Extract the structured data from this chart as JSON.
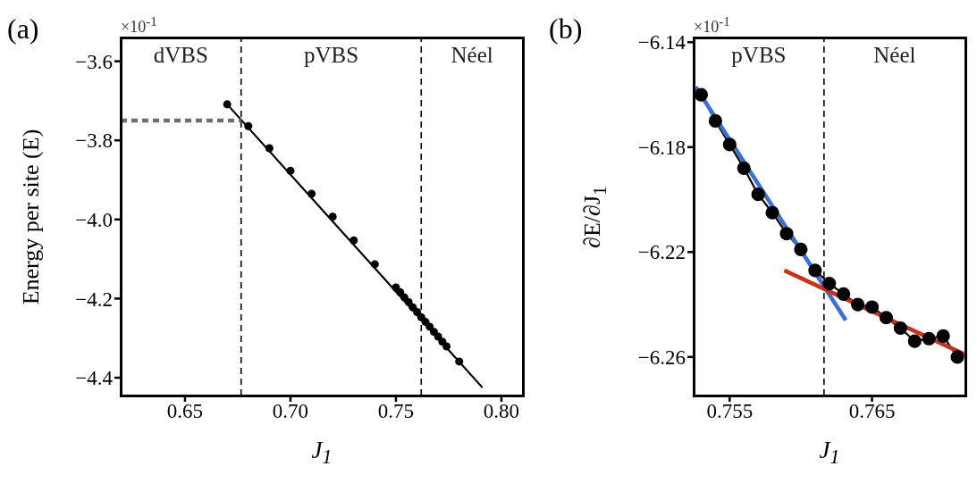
{
  "chart_data": [
    {
      "type": "line",
      "title": "(a)",
      "xlabel": "J$_{1}$",
      "ylabel": "Energy per site (E)",
      "annotations": [
        "×10$^{-1}$",
        "dVBS",
        "pVBS",
        "Néel"
      ],
      "xlim": [
        0.6195,
        0.8102
      ],
      "ylim": [
        -4.445,
        -3.54
      ],
      "xticks": [
        0.65,
        {
          "value": 0.7,
          "label": "0.70"
        },
        0.75,
        {
          "value": 0.8,
          "label": "0.80"
        }
      ],
      "yticks": [
        {
          "value": -3.6,
          "label": "−3.6"
        },
        {
          "value": -3.8,
          "label": "−3.8"
        },
        {
          "value": -4.0,
          "label": "−4.0"
        },
        {
          "value": -4.2,
          "label": "−4.2"
        },
        {
          "value": -4.4,
          "label": "−4.4"
        }
      ],
      "ref_lines": [
        {
          "axis": "x",
          "value": 0.6766,
          "color": "#000000",
          "line_style": "dashed"
        },
        {
          "axis": "x",
          "value": 0.762,
          "color": "#000000",
          "line_style": "dashed"
        }
      ],
      "series": [
        {
          "type": "line",
          "color": "#000000",
          "x": [
            0.67,
            0.791
          ],
          "values": [
            -3.709,
            -4.425
          ]
        },
        {
          "type": "scatter",
          "color": "#000000",
          "marker": "circle",
          "x": [
            0.67,
            0.68,
            0.69,
            0.7,
            0.71,
            0.72,
            0.73,
            0.74,
            0.75,
            0.752,
            0.754,
            0.756,
            0.758,
            0.76,
            0.762,
            0.764,
            0.766,
            0.768,
            0.77,
            0.772,
            0.774,
            0.78
          ],
          "values": [
            -3.709,
            -3.764,
            -3.82,
            -3.877,
            -3.935,
            -3.993,
            -4.053,
            -4.113,
            -4.172,
            -4.184,
            -4.197,
            -4.209,
            -4.222,
            -4.234,
            -4.247,
            -4.259,
            -4.271,
            -4.284,
            -4.296,
            -4.309,
            -4.321,
            -4.359
          ]
        },
        {
          "type": "line",
          "color": "#6e6e6e",
          "marker": "none",
          "line_style": "dashed",
          "x": [
            0.6195,
            0.6766
          ],
          "values": [
            -3.75,
            -3.75
          ]
        }
      ]
    },
    {
      "type": "line",
      "title": "(b)",
      "xlabel": "J$_{1}$",
      "ylabel": "∂E/∂J$_{1}$",
      "annotations": [
        "×10$^{-1}$",
        "pVBS",
        "Néel"
      ],
      "xlim": [
        0.75247,
        0.77156
      ],
      "ylim": [
        -6.2747,
        -6.1382
      ],
      "xticks": [
        0.755,
        0.765
      ],
      "yticks": [
        {
          "value": -6.14,
          "label": "−6.14"
        },
        {
          "value": -6.18,
          "label": "−6.18"
        },
        {
          "value": -6.22,
          "label": "−6.22"
        },
        {
          "value": -6.26,
          "label": "−6.26"
        }
      ],
      "ref_lines": [
        {
          "axis": "x",
          "value": 0.76163,
          "color": "#000000",
          "line_style": "dashed"
        }
      ],
      "series": [
        {
          "type": "line",
          "color": "#000000",
          "marker": "circle",
          "x": [
            0.753,
            0.754,
            0.755,
            0.756,
            0.757,
            0.758,
            0.759,
            0.76,
            0.761,
            0.762,
            0.763,
            0.764,
            0.765,
            0.766,
            0.767,
            0.768,
            0.769,
            0.77,
            0.771
          ],
          "values": [
            -6.16,
            -6.17,
            -6.179,
            -6.188,
            -6.198,
            -6.205,
            -6.213,
            -6.219,
            -6.227,
            -6.232,
            -6.236,
            -6.24,
            -6.241,
            -6.245,
            -6.249,
            -6.254,
            -6.253,
            -6.252,
            -6.26
          ]
        },
        {
          "type": "line",
          "color": "#3b6fd4",
          "marker": "none",
          "x": [
            0.75261,
            0.76316
          ],
          "values": [
            -6.157,
            -6.246
          ]
        },
        {
          "type": "line",
          "color": "#c8321a",
          "marker": "none",
          "x": [
            0.75884,
            0.7715
          ],
          "values": [
            -6.227,
            -6.259
          ]
        }
      ]
    }
  ]
}
